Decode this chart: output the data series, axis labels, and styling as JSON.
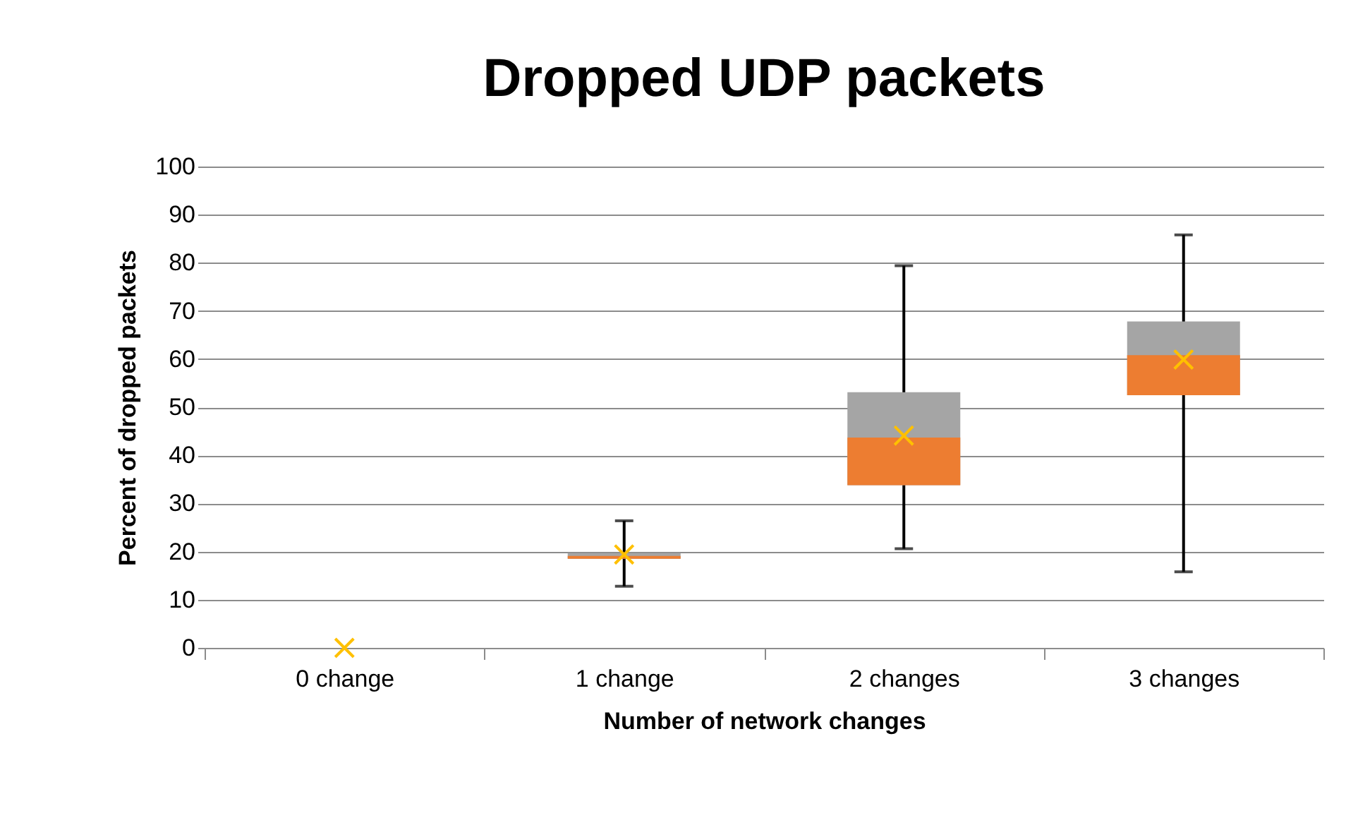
{
  "chart_data": {
    "type": "box",
    "title": "Dropped UDP packets",
    "xlabel": "Number of network changes",
    "ylabel": "Percent of dropped packets",
    "categories": [
      "0 change",
      "1 change",
      "2 changes",
      "3 changes"
    ],
    "series": [
      {
        "color": "#a5a5a5",
        "boxes": [
          null,
          {
            "low": 12.8,
            "q1": 18.5,
            "median": 19.1,
            "q3": 19.7,
            "high": 26.4
          },
          {
            "low": 20.6,
            "q1": 33.8,
            "median": 43.7,
            "q3": 53.1,
            "high": 79.4
          },
          {
            "low": 15.8,
            "q1": 52.5,
            "median": 60.8,
            "q3": 67.8,
            "high": 85.8
          }
        ]
      },
      {
        "type": "scatter",
        "color": "#ffc000",
        "x": [
          "0 change",
          "1 change",
          "2 changes",
          "3 changes"
        ],
        "values": [
          0,
          19.4,
          44.1,
          59.9
        ]
      }
    ],
    "ylim": [
      0,
      100
    ],
    "yticks": [
      0,
      10,
      20,
      30,
      40,
      50,
      60,
      70,
      80,
      90,
      100
    ],
    "grid": "y"
  }
}
